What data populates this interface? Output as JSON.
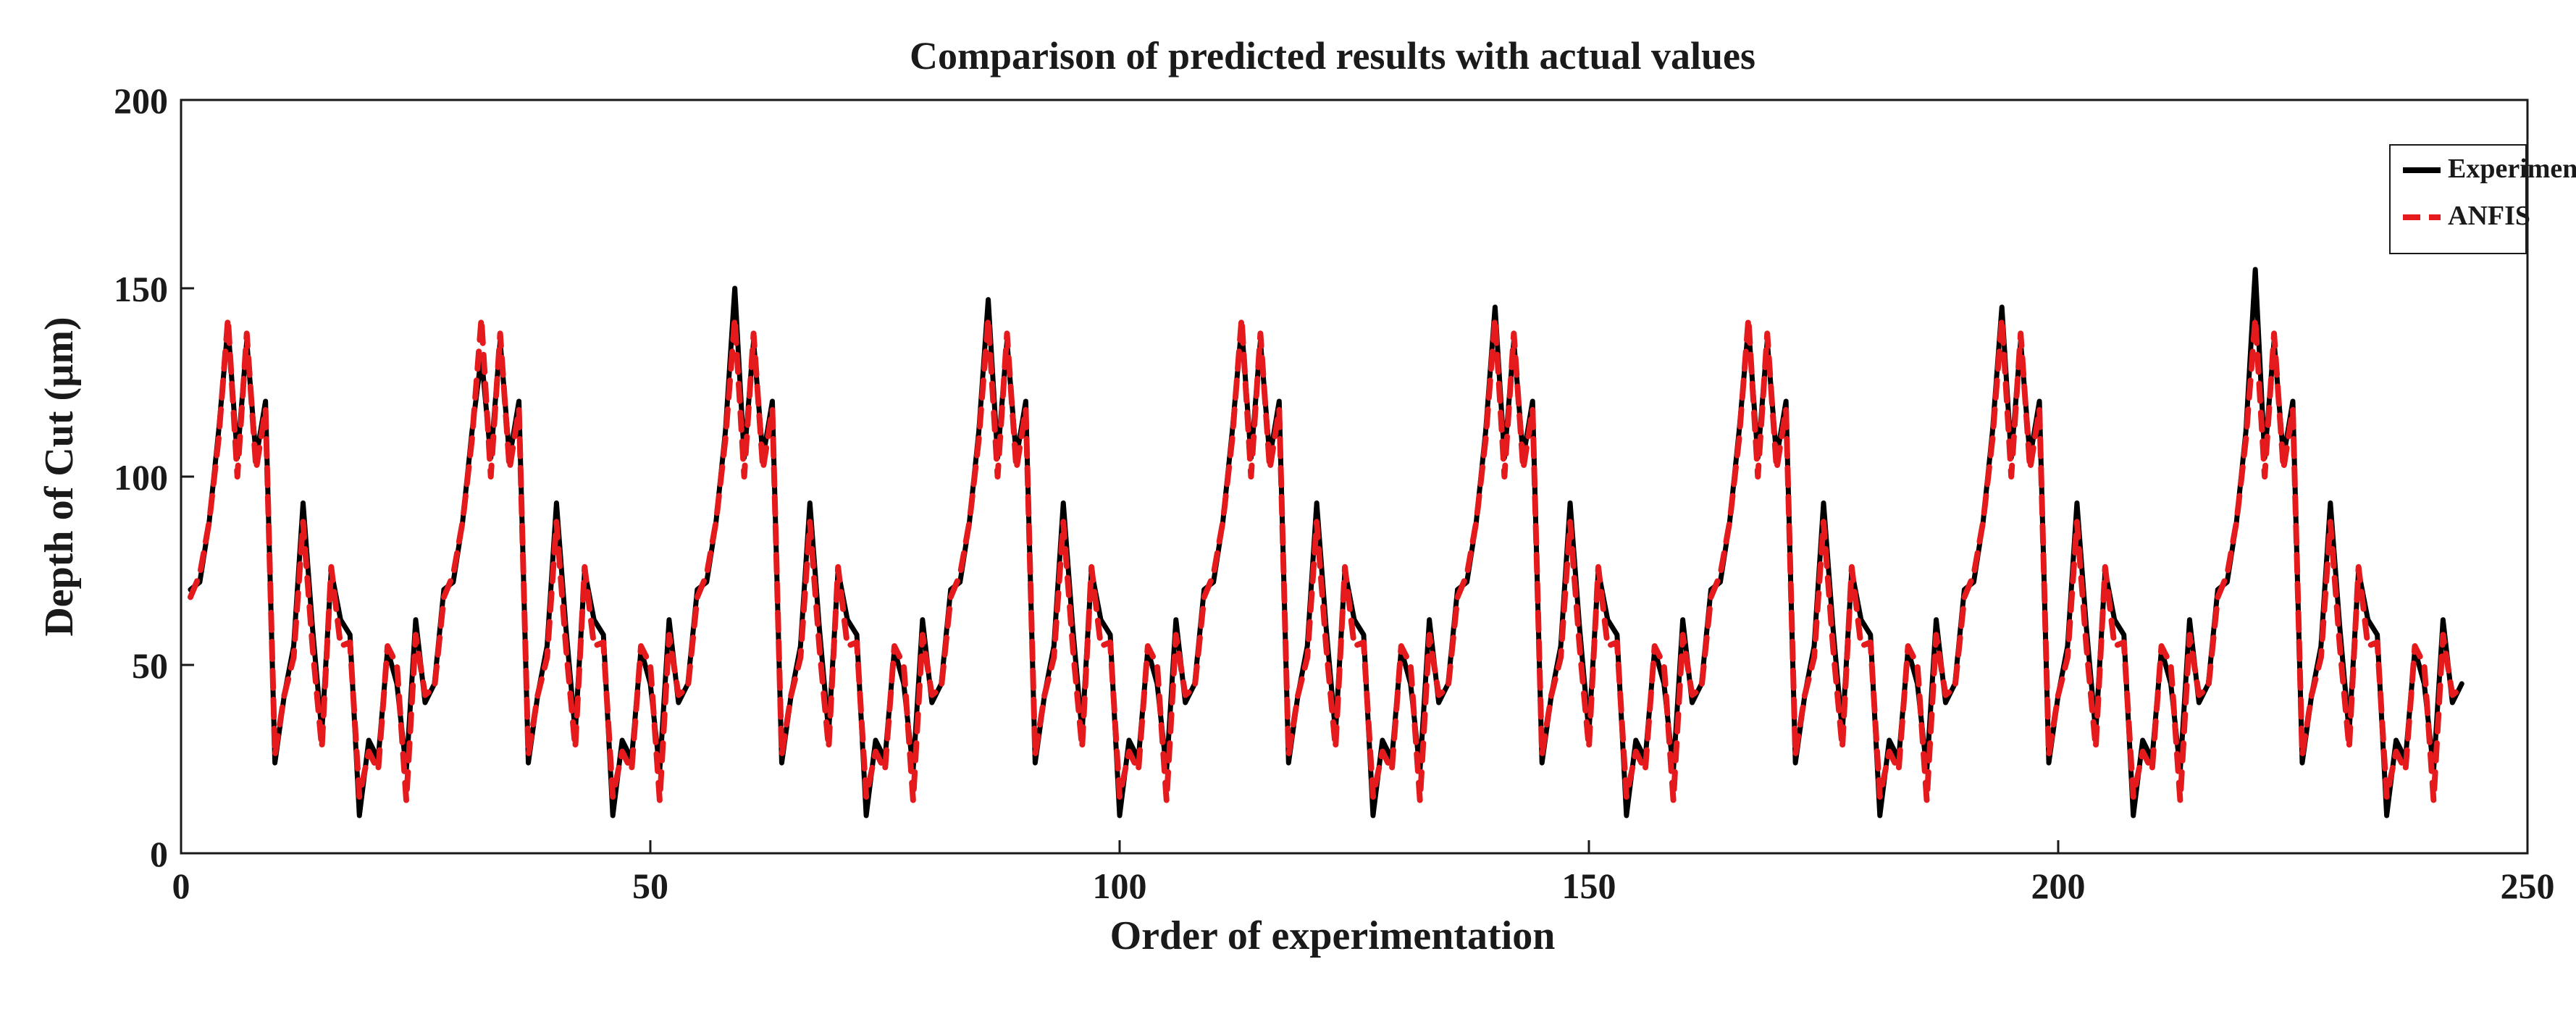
{
  "chart_data": {
    "type": "line",
    "title": "Comparison of predicted results with actual values",
    "xlabel": "Order of experimentation",
    "ylabel": "Depth of Cut (µm)",
    "xlim": [
      0,
      250
    ],
    "ylim": [
      0,
      200
    ],
    "xticks": [
      0,
      50,
      100,
      150,
      200,
      250
    ],
    "yticks": [
      0,
      50,
      100,
      150,
      200
    ],
    "grid": false,
    "legend_position": "top-right",
    "colors": {
      "experimental": "#000000",
      "anfis": "#e41a1c",
      "axis": "#1a1a1a"
    },
    "legend": [
      "Experimental",
      "ANFIS"
    ],
    "x_start": 1,
    "pattern_length": 27,
    "series": [
      {
        "name": "Experimental",
        "style": "solid",
        "base_pattern": [
          70,
          72,
          88,
          112,
          140,
          105,
          136,
          105,
          120,
          24,
          42,
          55,
          93,
          60,
          32,
          75,
          62,
          58,
          10,
          30,
          25,
          54,
          45,
          22,
          62,
          40,
          45
        ]
      },
      {
        "name": "ANFIS",
        "style": "dashed",
        "base_pattern": [
          68,
          74,
          88,
          110,
          142,
          100,
          138,
          102,
          118,
          26,
          42,
          52,
          88,
          55,
          28,
          76,
          55,
          56,
          15,
          27,
          22,
          55,
          50,
          14,
          58,
          42,
          44
        ]
      }
    ],
    "cycle_adjustments": {
      "experimental_peak_values": [
        140,
        132,
        150,
        147,
        140,
        145,
        140,
        145,
        155
      ],
      "anfis_peak_values": [
        142,
        142,
        142,
        142,
        142,
        142,
        142,
        142,
        142
      ]
    }
  }
}
